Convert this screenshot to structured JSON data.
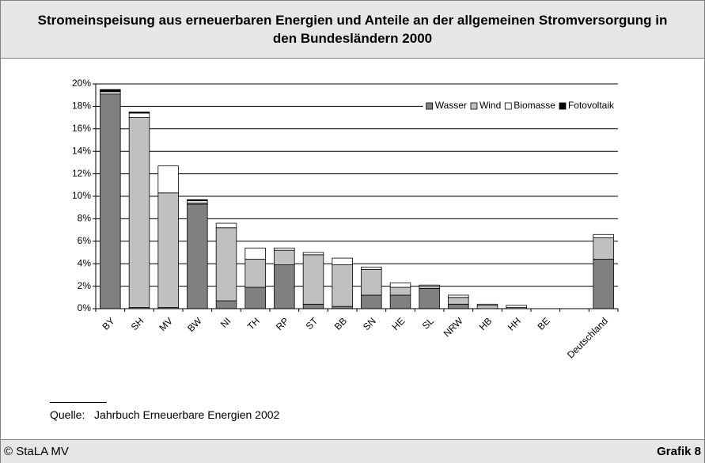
{
  "chart_data": {
    "type": "stacked_bar",
    "title": "Stromeinspeisung aus erneuerbaren Energien und Anteile an der allgemeinen Stromversorgung in den Bundesländern 2000",
    "categories": [
      "BY",
      "SH",
      "MV",
      "BW",
      "NI",
      "TH",
      "RP",
      "ST",
      "BB",
      "SN",
      "HE",
      "SL",
      "NRW",
      "HB",
      "HH",
      "BE",
      null,
      "Deutschland"
    ],
    "series": [
      {
        "name": "Wasser",
        "color": "#808080",
        "values": [
          19.1,
          0.1,
          0.1,
          9.3,
          0.7,
          1.9,
          3.9,
          0.4,
          0.2,
          1.2,
          1.2,
          1.8,
          0.4,
          0,
          0,
          0,
          null,
          4.4
        ]
      },
      {
        "name": "Wind",
        "color": "#c0c0c0",
        "values": [
          0,
          16.9,
          10.2,
          0.1,
          6.5,
          2.5,
          1.3,
          4.4,
          3.7,
          2.3,
          0.7,
          0.2,
          0.6,
          0.3,
          0.1,
          0,
          null,
          1.9
        ]
      },
      {
        "name": "Biomasse",
        "color": "#ffffff",
        "values": [
          0.2,
          0.4,
          2.4,
          0.2,
          0.4,
          1.0,
          0.2,
          0.2,
          0.6,
          0.2,
          0.4,
          0.1,
          0.2,
          0.1,
          0.2,
          0,
          null,
          0.3
        ]
      },
      {
        "name": "Fotovoltaik",
        "color": "#000000",
        "values": [
          0.2,
          0.1,
          0,
          0.1,
          0,
          0,
          0,
          0,
          0,
          0,
          0,
          0,
          0,
          0,
          0,
          0,
          null,
          0
        ]
      }
    ],
    "ylim": [
      0,
      20
    ],
    "yticks": [
      {
        "value": 0,
        "label": "0%"
      },
      {
        "value": 2,
        "label": "2%"
      },
      {
        "value": 4,
        "label": "4%"
      },
      {
        "value": 6,
        "label": "6%"
      },
      {
        "value": 8,
        "label": "8%"
      },
      {
        "value": 10,
        "label": "10%"
      },
      {
        "value": 12,
        "label": "12%"
      },
      {
        "value": 14,
        "label": "14%"
      },
      {
        "value": 16,
        "label": "16%"
      },
      {
        "value": 18,
        "label": "18%"
      },
      {
        "value": 20,
        "label": "20%"
      }
    ],
    "grid": true,
    "legend": "top-right"
  },
  "source": {
    "label": "Quelle:",
    "text": "Jahrbuch Erneuerbare Energien 2002"
  },
  "footer": {
    "left": "© StaLA MV",
    "right": "Grafik 8"
  }
}
